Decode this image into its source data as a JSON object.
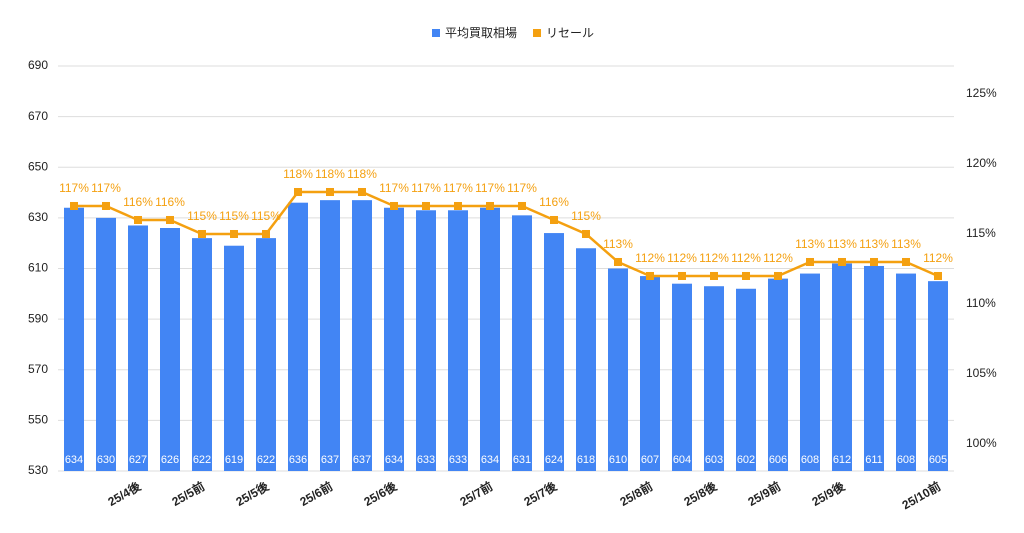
{
  "chart_data": {
    "type": "bar_line",
    "categories": [
      null,
      null,
      "25/4後",
      null,
      "25/5前",
      null,
      "25/5後",
      null,
      "25/6前",
      null,
      "25/6後",
      null,
      null,
      "25/7前",
      null,
      "25/7後",
      null,
      null,
      "25/8前",
      null,
      "25/8後",
      null,
      "25/9前",
      null,
      "25/9後",
      null,
      null,
      "25/10前"
    ],
    "series": [
      {
        "name": "平均買取相場",
        "color": "#4285f4",
        "type": "bar",
        "values": [
          634,
          630,
          627,
          626,
          622,
          619,
          622,
          636,
          637,
          637,
          634,
          633,
          633,
          634,
          631,
          624,
          618,
          610,
          607,
          604,
          603,
          602,
          606,
          608,
          612,
          611,
          608,
          605
        ]
      },
      {
        "name": "リセール",
        "color": "#f4a010",
        "type": "line",
        "axis": "y2",
        "values": [
          117,
          117,
          116,
          116,
          115,
          115,
          115,
          118,
          118,
          118,
          117,
          117,
          117,
          117,
          117,
          116,
          115,
          113,
          112,
          112,
          112,
          112,
          112,
          113,
          113,
          113,
          113,
          112
        ],
        "value_labels": [
          "117%",
          "117%",
          "116%",
          "116%",
          "115%",
          "115%",
          "115%",
          "118%",
          "118%",
          "118%",
          "117%",
          "117%",
          "117%",
          "117%",
          "117%",
          "116%",
          "115%",
          "113%",
          "112%",
          "112%",
          "112%",
          "112%",
          "112%",
          "113%",
          "113%",
          "113%",
          "113%",
          "112%"
        ]
      }
    ],
    "ylim": [
      530,
      690
    ],
    "yticks": [
      530,
      550,
      570,
      590,
      610,
      630,
      650,
      670,
      690
    ],
    "y2lim": [
      98.07,
      127.0
    ],
    "y2ticks": [
      {
        "value": 100,
        "label": "100%"
      },
      {
        "value": 105,
        "label": "105%"
      },
      {
        "value": 110,
        "label": "110%"
      },
      {
        "value": 115,
        "label": "115%"
      },
      {
        "value": 120,
        "label": "120%"
      },
      {
        "value": 125,
        "label": "125%"
      }
    ],
    "grid": true
  }
}
